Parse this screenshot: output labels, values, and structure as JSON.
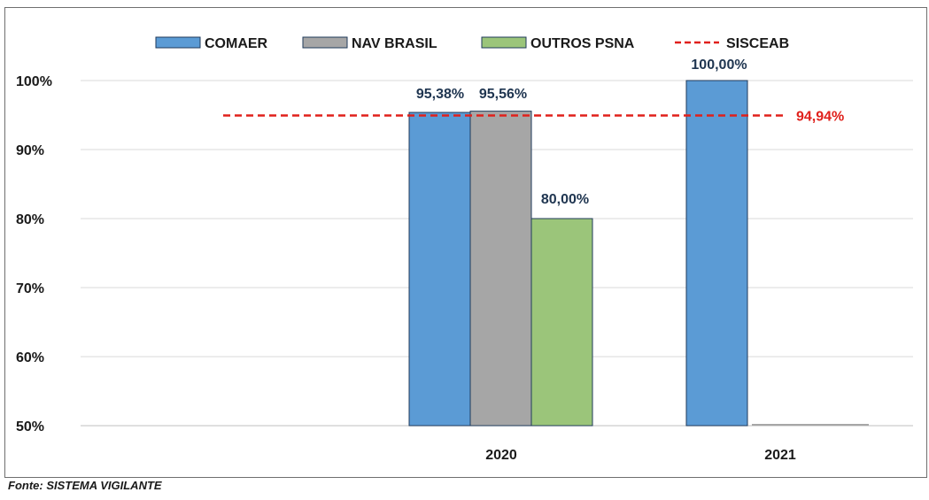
{
  "chart_data": {
    "type": "bar",
    "categories": [
      "2020",
      "2021"
    ],
    "series": [
      {
        "name": "COMAER",
        "color": "#5b9bd5",
        "values": [
          95.38,
          100.0
        ],
        "labels": [
          "95,38%",
          "100,00%"
        ]
      },
      {
        "name": "NAV BRASIL",
        "color": "#a6a6a6",
        "values": [
          95.56,
          null
        ],
        "labels": [
          "95,56%",
          ""
        ]
      },
      {
        "name": "OUTROS PSNA",
        "color": "#9bc57a",
        "values": [
          80.0,
          null
        ],
        "labels": [
          "80,00%",
          ""
        ]
      }
    ],
    "reference_line": {
      "name": "SISCEAB",
      "value": 94.94,
      "label": "94,94%",
      "color": "#e0201b",
      "style": "dashed"
    },
    "yticks": [
      "50%",
      "60%",
      "70%",
      "80%",
      "90%",
      "100%"
    ],
    "ylim": [
      50,
      100
    ],
    "grid": true,
    "legend_position": "top"
  },
  "source_note": "Fonte: SISTEMA VIGILANTE"
}
